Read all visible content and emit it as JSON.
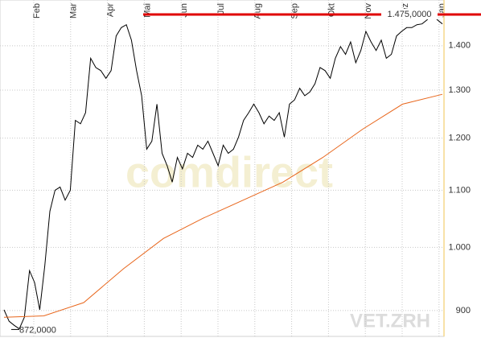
{
  "chart_data": {
    "type": "line",
    "months": [
      "Feb",
      "Mar",
      "Apr",
      "Mai",
      "Jun",
      "Jul",
      "Aug",
      "Sep",
      "Okt",
      "Nov",
      "Dez",
      "Jan"
    ],
    "series": [
      {
        "color": "#000000",
        "values": [
          901,
          884,
          878,
          873,
          890,
          962,
          943,
          901,
          970,
          1062,
          1100,
          1106,
          1082,
          1100,
          1236,
          1229,
          1252,
          1371,
          1350,
          1343,
          1326,
          1343,
          1423,
          1443,
          1450,
          1413,
          1343,
          1288,
          1178,
          1194,
          1270,
          1170,
          1146,
          1115,
          1162,
          1140,
          1170,
          1162,
          1186,
          1178,
          1194,
          1170,
          1146,
          1186,
          1170,
          1178,
          1202,
          1236,
          1252,
          1270,
          1252,
          1229,
          1245,
          1236,
          1252,
          1202,
          1270,
          1279,
          1304,
          1288,
          1296,
          1314,
          1350,
          1343,
          1326,
          1371,
          1398,
          1380,
          1409,
          1361,
          1389,
          1434,
          1409,
          1389,
          1413,
          1371,
          1380,
          1423,
          1434,
          1443,
          1443,
          1450,
          1452,
          1462,
          1478,
          1462,
          1452
        ]
      },
      {
        "color": "#e8661c",
        "values": [
          890,
          892,
          912,
          965,
          1015,
          1050,
          1082,
          1115,
          1162,
          1218,
          1270,
          1291
        ]
      }
    ],
    "ylim": [
      862,
      1511
    ],
    "log_scale": true,
    "yticks": [
      900,
      {
        "value": 1000,
        "label": "1.000"
      },
      {
        "value": 1100,
        "label": "1.100"
      },
      {
        "value": 1200,
        "label": "1.200"
      },
      {
        "value": 1300,
        "label": "1.300"
      },
      {
        "value": 1400,
        "label": "1.400"
      }
    ],
    "grid": true,
    "high_line": {
      "value": 1475,
      "label": "1.475,0000",
      "color": "#e00000"
    },
    "low_mark": {
      "value": 872,
      "label": "872,0000"
    },
    "watermark": "comdirect",
    "symbol": "VET.ZRH"
  }
}
